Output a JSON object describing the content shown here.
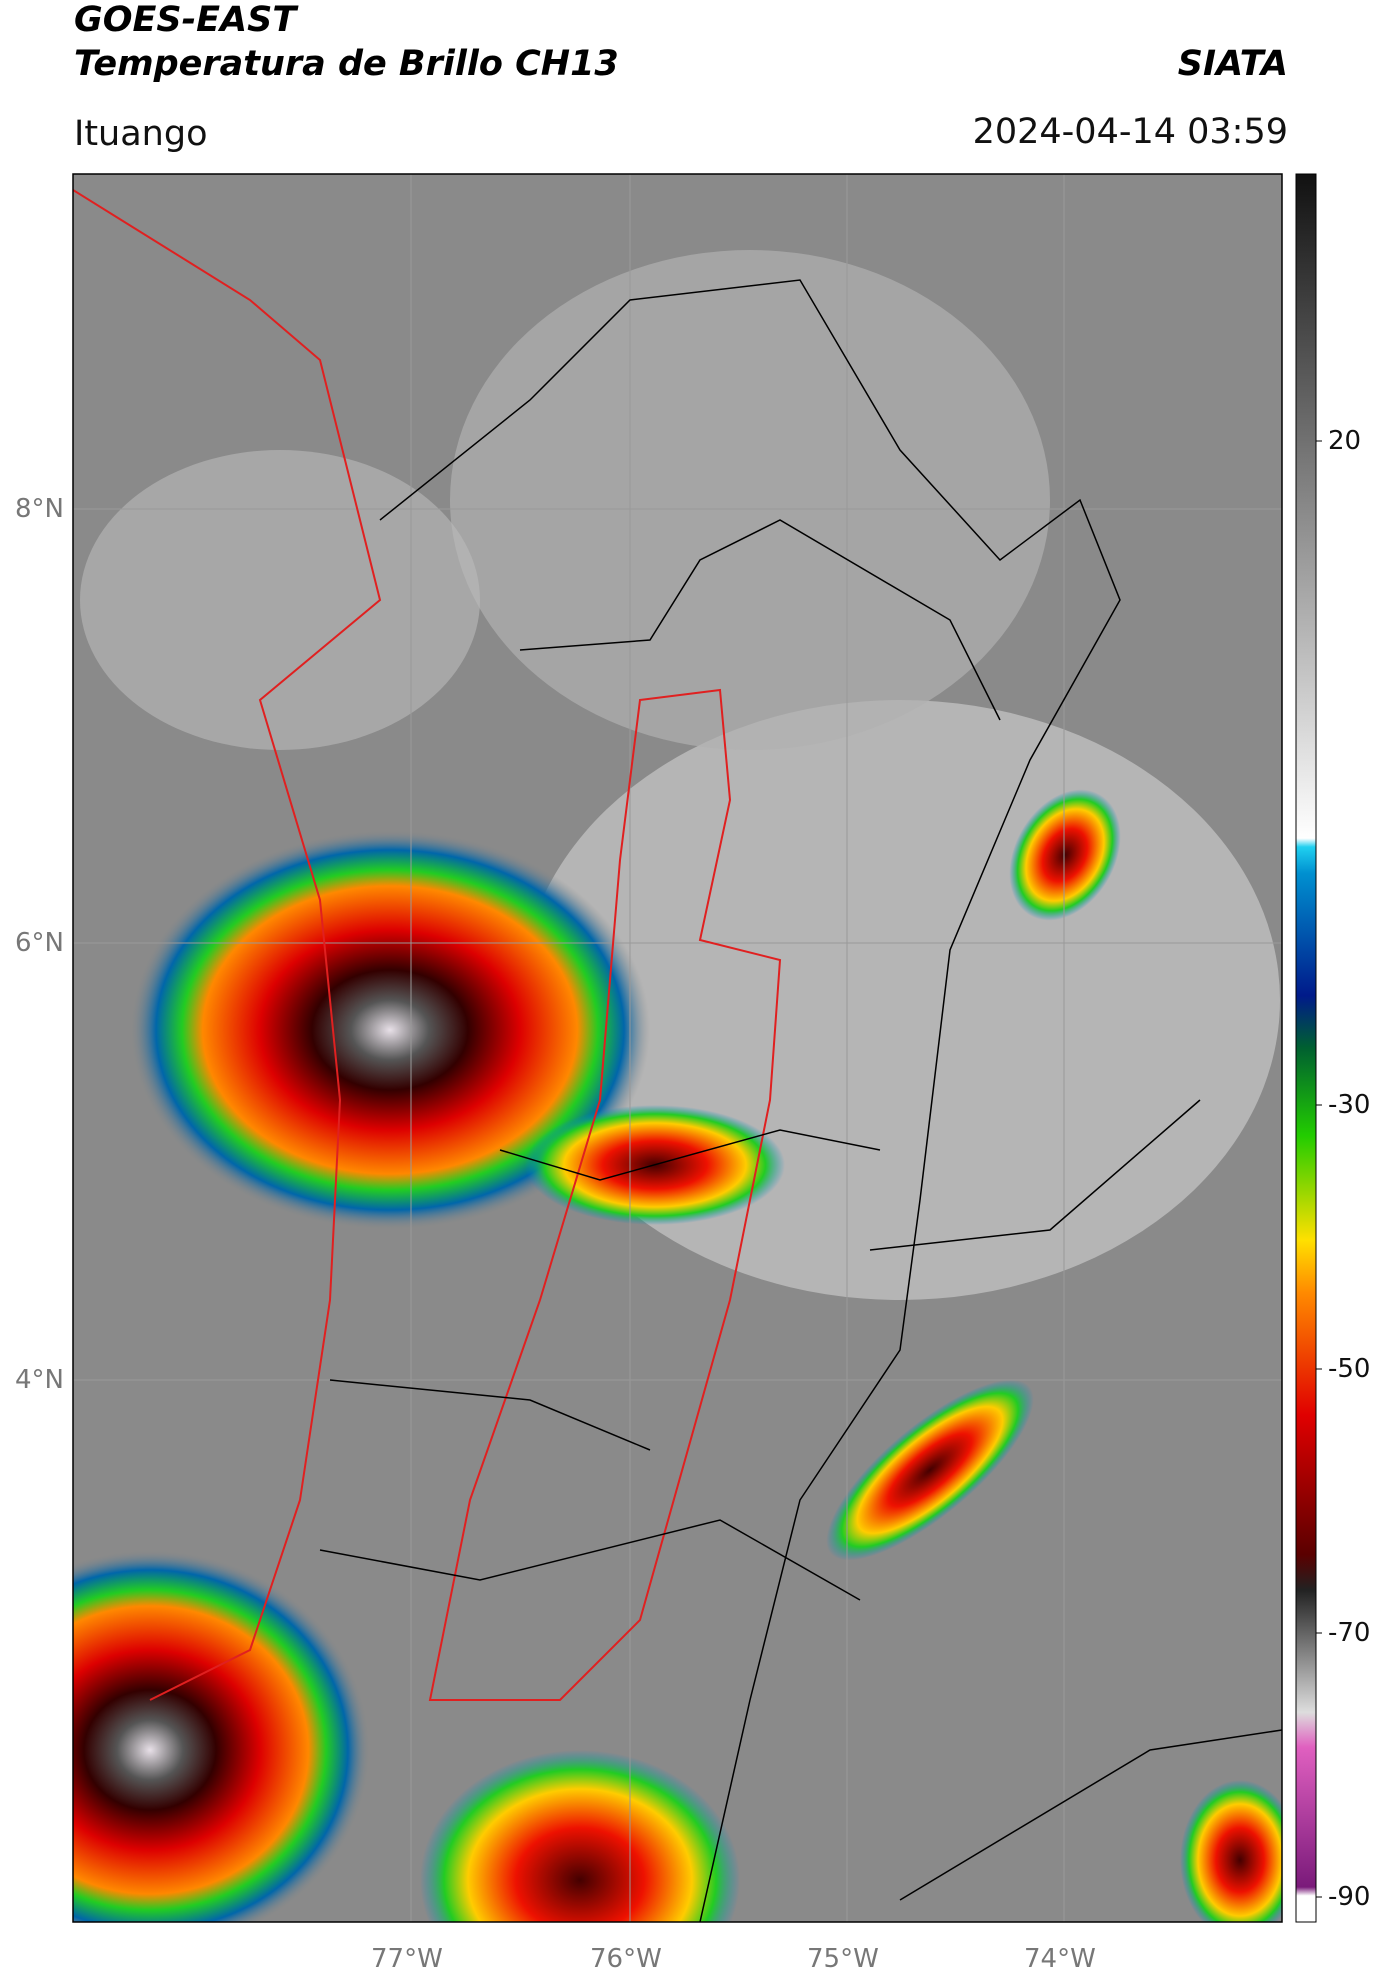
{
  "header": {
    "title_line1": "GOES-EAST",
    "title_line2": "Temperatura de Brillo CH13",
    "org": "SIATA",
    "region": "Ituango",
    "timestamp": "2024-04-14 03:59"
  },
  "map": {
    "lat_labels": [
      "8°N",
      "6°N",
      "4°N"
    ],
    "lon_labels": [
      "77°W",
      "76°W",
      "75°W",
      "74°W"
    ]
  },
  "colorbar": {
    "tick_labels": [
      "20",
      "-30",
      "-50",
      "-70",
      "-90"
    ]
  }
}
